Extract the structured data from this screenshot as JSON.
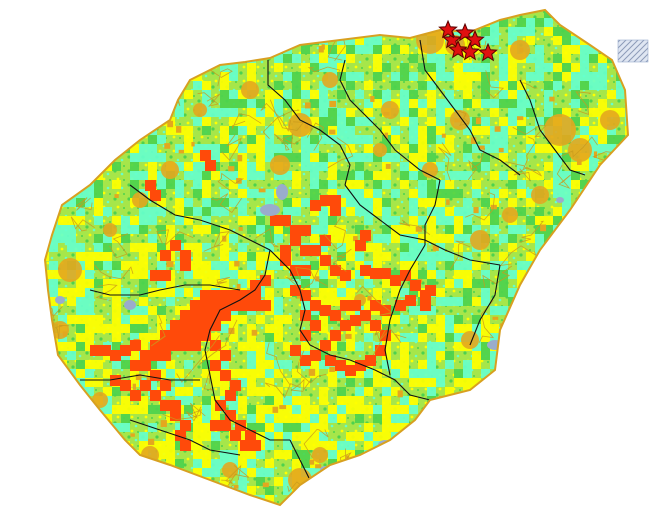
{
  "map": {
    "colors": {
      "background": "#ffffff",
      "island_base": "#a6e64a",
      "high_class": "#ff4a0a",
      "mid_class": "#ffff00",
      "low_class": "#66ffcc",
      "urban_class": "#e3a71f",
      "green_class": "#4dd24d",
      "water": "#9aaccc",
      "boundary_line": "#111111",
      "road_line": "#c99a1c",
      "marker_fill": "#e01010",
      "marker_stroke": "#5a0000",
      "hatch_fill": "#b9c6dd"
    },
    "markers": {
      "icon": "red-star-icon",
      "count": 7
    },
    "hatch_symbol": "hatched-square-icon"
  }
}
